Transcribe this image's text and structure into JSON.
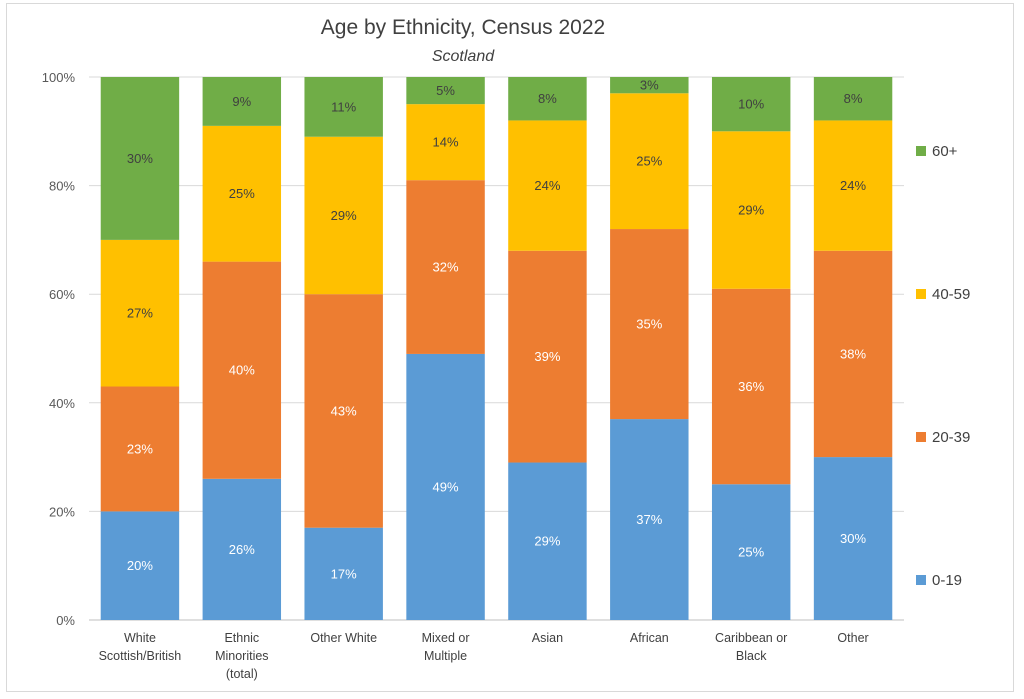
{
  "chart_data": {
    "type": "bar",
    "stacked": true,
    "title": "Age by Ethnicity, Census 2022",
    "subtitle": "Scotland",
    "xlabel": "",
    "ylabel": "",
    "ylim": [
      0,
      100
    ],
    "yticks": [
      "0%",
      "20%",
      "40%",
      "60%",
      "80%",
      "100%"
    ],
    "grid": true,
    "legend_position": "right",
    "categories": [
      [
        "White",
        "Scottish/British"
      ],
      [
        "Ethnic",
        "Minorities",
        "(total)"
      ],
      [
        "Other White"
      ],
      [
        "Mixed or",
        "Multiple"
      ],
      [
        "Asian"
      ],
      [
        "African"
      ],
      [
        "Caribbean or",
        "Black"
      ],
      [
        "Other"
      ]
    ],
    "series": [
      {
        "name": "0-19",
        "color": "#5b9bd5",
        "label_color": "#ffffff",
        "values": [
          20,
          26,
          17,
          49,
          29,
          37,
          25,
          30
        ]
      },
      {
        "name": "20-39",
        "color": "#ed7d31",
        "label_color": "#ffffff",
        "values": [
          23,
          40,
          43,
          32,
          39,
          35,
          36,
          38
        ]
      },
      {
        "name": "40-59",
        "color": "#ffc000",
        "label_color": "#404040",
        "values": [
          27,
          25,
          29,
          14,
          24,
          25,
          29,
          24
        ]
      },
      {
        "name": "60+",
        "color": "#70ad47",
        "label_color": "#404040",
        "values": [
          30,
          9,
          11,
          5,
          8,
          3,
          10,
          8
        ]
      }
    ]
  }
}
